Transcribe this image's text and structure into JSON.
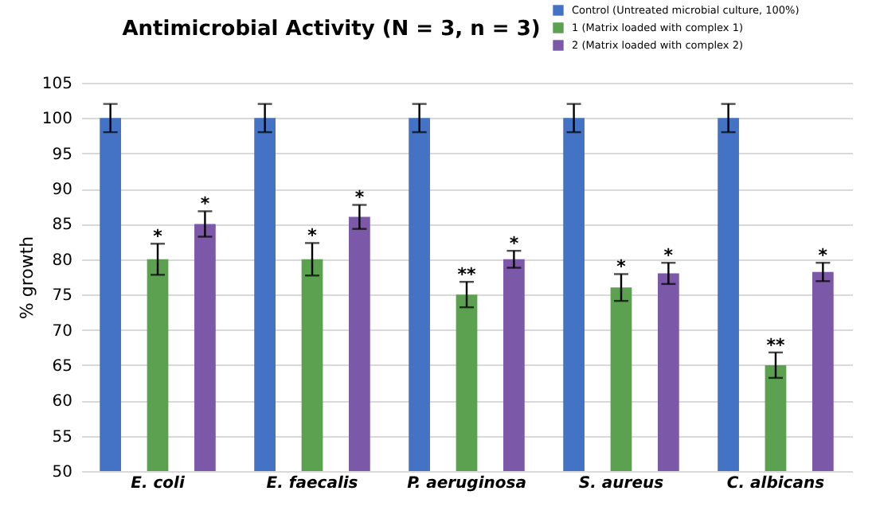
{
  "chart_data": {
    "type": "bar",
    "title": "Antimicrobial Activity (N = 3, n = 3)",
    "ylabel": "% growth",
    "categories": [
      "E. coli",
      "E. faecalis",
      "P. aeruginosa",
      "S. aureus",
      "C. albicans"
    ],
    "series": [
      {
        "name": "Control (Untreated microbial culture, 100%)",
        "color": "#4472c4",
        "values": [
          100,
          100,
          100,
          100,
          100
        ],
        "errors": [
          2,
          2,
          2,
          2,
          2
        ]
      },
      {
        "name": "1 (Matrix loaded with complex 1)",
        "color": "#5ba150",
        "values": [
          80,
          80,
          75,
          76,
          65
        ],
        "errors": [
          2.2,
          2.3,
          1.8,
          1.9,
          1.8
        ],
        "value_labels": [
          "*",
          "*",
          "**",
          "*",
          "**"
        ]
      },
      {
        "name": "2 (Matrix loaded with complex 2)",
        "color": "#7b58a8",
        "values": [
          85,
          86,
          80,
          78,
          78.2
        ],
        "errors": [
          1.8,
          1.7,
          1.2,
          1.5,
          1.3
        ],
        "value_labels": [
          "*",
          "*",
          "*",
          "*",
          "*"
        ]
      }
    ],
    "ylim": [
      50,
      105
    ],
    "yticks": [
      50,
      55,
      60,
      65,
      70,
      75,
      80,
      85,
      90,
      95,
      100,
      105
    ],
    "grid": "y",
    "legend": "top right"
  }
}
